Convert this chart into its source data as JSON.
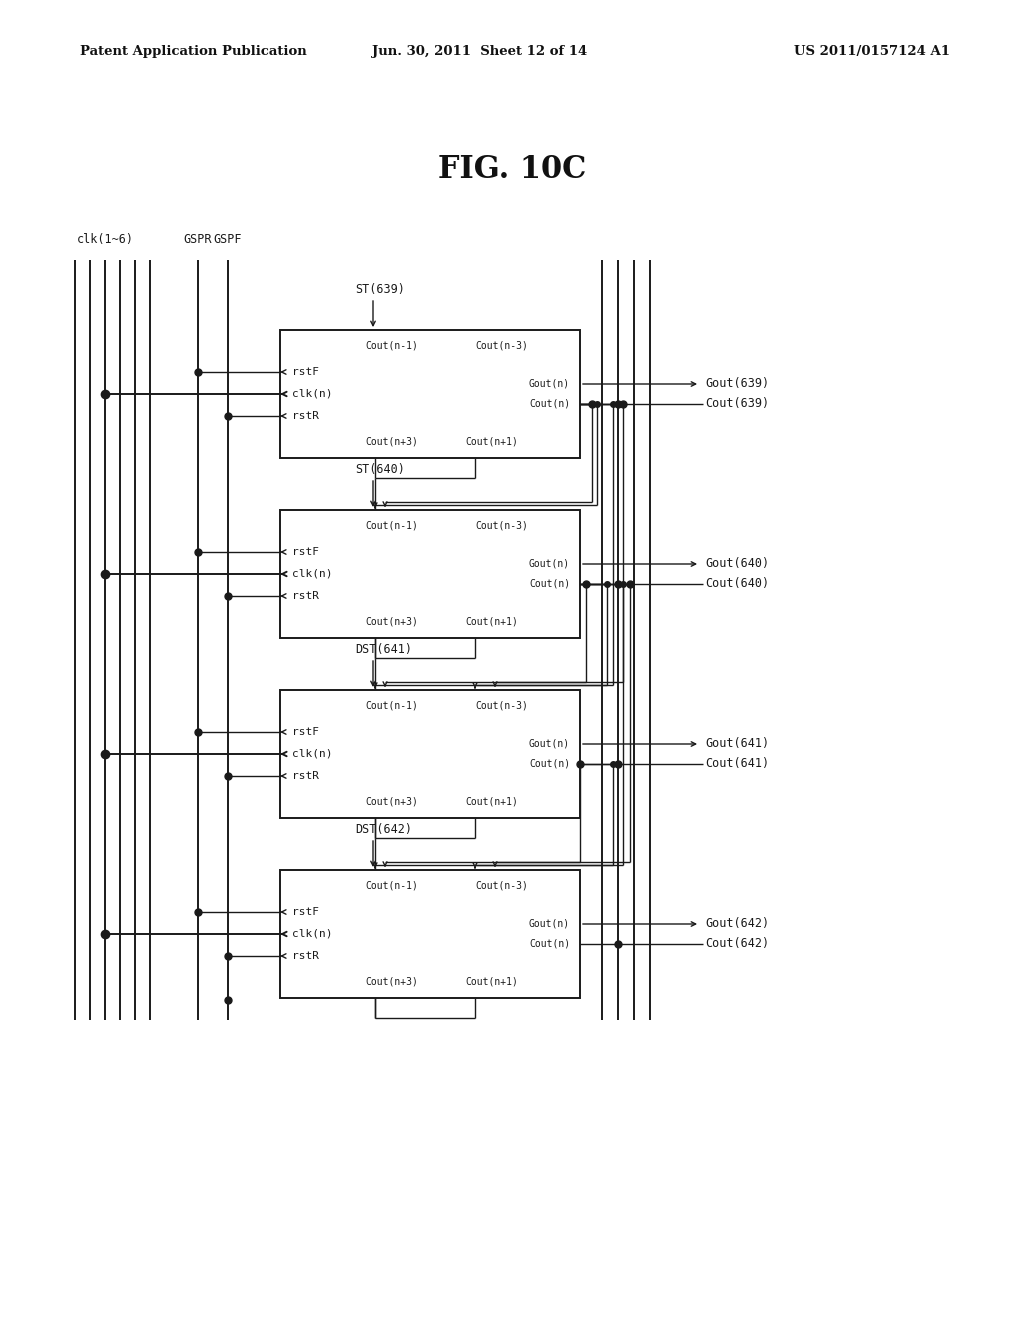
{
  "title": "FIG. 10C",
  "header_left": "Patent Application Publication",
  "header_center": "Jun. 30, 2011  Sheet 12 of 14",
  "header_right": "US 2011/0157124 A1",
  "bg_color": "#ffffff",
  "text_color": "#000000",
  "clk_label": "clk(1~6)",
  "gspr_label": "GSPR",
  "gspf_label": "GSPF",
  "block_labels": [
    "ST(639)",
    "ST(640)",
    "DST(641)",
    "DST(642)"
  ],
  "gout_labels": [
    "Gout(639)",
    "Gout(640)",
    "Gout(641)",
    "Gout(642)"
  ],
  "cout_labels": [
    "Cout(639)",
    "Cout(640)",
    "Cout(641)",
    "Cout(642)"
  ],
  "line_color": "#1a1a1a",
  "lw": 1.4,
  "tlw": 1.0,
  "dot_size": 5
}
